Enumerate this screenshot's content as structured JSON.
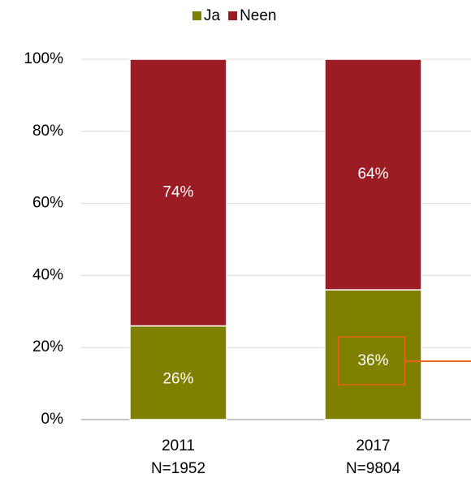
{
  "chart_data": {
    "type": "stacked_bar",
    "categories": [
      [
        "2011",
        "N=1952"
      ],
      [
        "2017",
        "N=9804"
      ]
    ],
    "series": [
      {
        "name": "Ja",
        "color": "#7f8000",
        "values": [
          26,
          36
        ],
        "value_labels": [
          "26%",
          "36%"
        ]
      },
      {
        "name": "Neen",
        "color": "#9b1c22",
        "values": [
          74,
          64
        ],
        "value_labels": [
          "74%",
          "64%"
        ]
      }
    ],
    "ylim": [
      0,
      100
    ],
    "yticks": [
      {
        "value": 0,
        "label": "0%"
      },
      {
        "value": 20,
        "label": "20%"
      },
      {
        "value": 40,
        "label": "40%"
      },
      {
        "value": 60,
        "label": "60%"
      },
      {
        "value": 80,
        "label": "80%"
      },
      {
        "value": 100,
        "label": "100%"
      }
    ],
    "grid": true,
    "legend": "top"
  }
}
